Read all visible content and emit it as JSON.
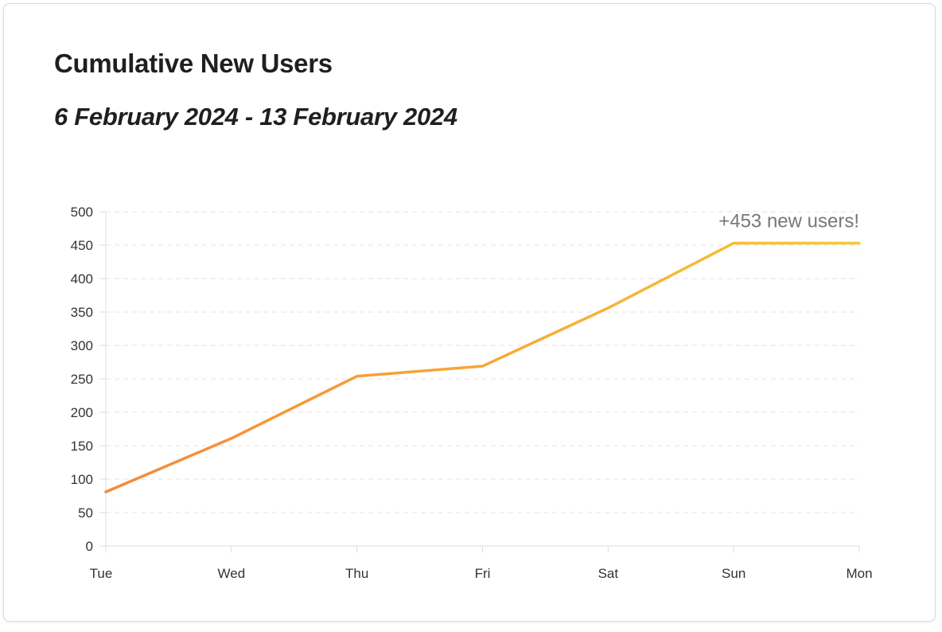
{
  "header": {
    "title": "Cumulative New Users",
    "subtitle": "6 February 2024 - 13 February 2024"
  },
  "chart_data": {
    "type": "line",
    "title": "Cumulative New Users",
    "subtitle": "6 February 2024 - 13 February 2024",
    "xlabel": "",
    "ylabel": "",
    "categories": [
      "Tue",
      "Wed",
      "Thu",
      "Fri",
      "Sat",
      "Sun",
      "Mon"
    ],
    "series": [
      {
        "values": [
          81,
          161,
          254,
          269,
          356,
          453,
          453
        ]
      }
    ],
    "ylim": [
      0,
      500
    ],
    "yticks": [
      0,
      50,
      100,
      150,
      200,
      250,
      300,
      350,
      400,
      450,
      500
    ],
    "grid": true,
    "gradient_colors": [
      "#f4893a",
      "#f8c732"
    ],
    "annotation": {
      "text": "+453 new users!",
      "category": "Mon",
      "value": 453
    }
  }
}
